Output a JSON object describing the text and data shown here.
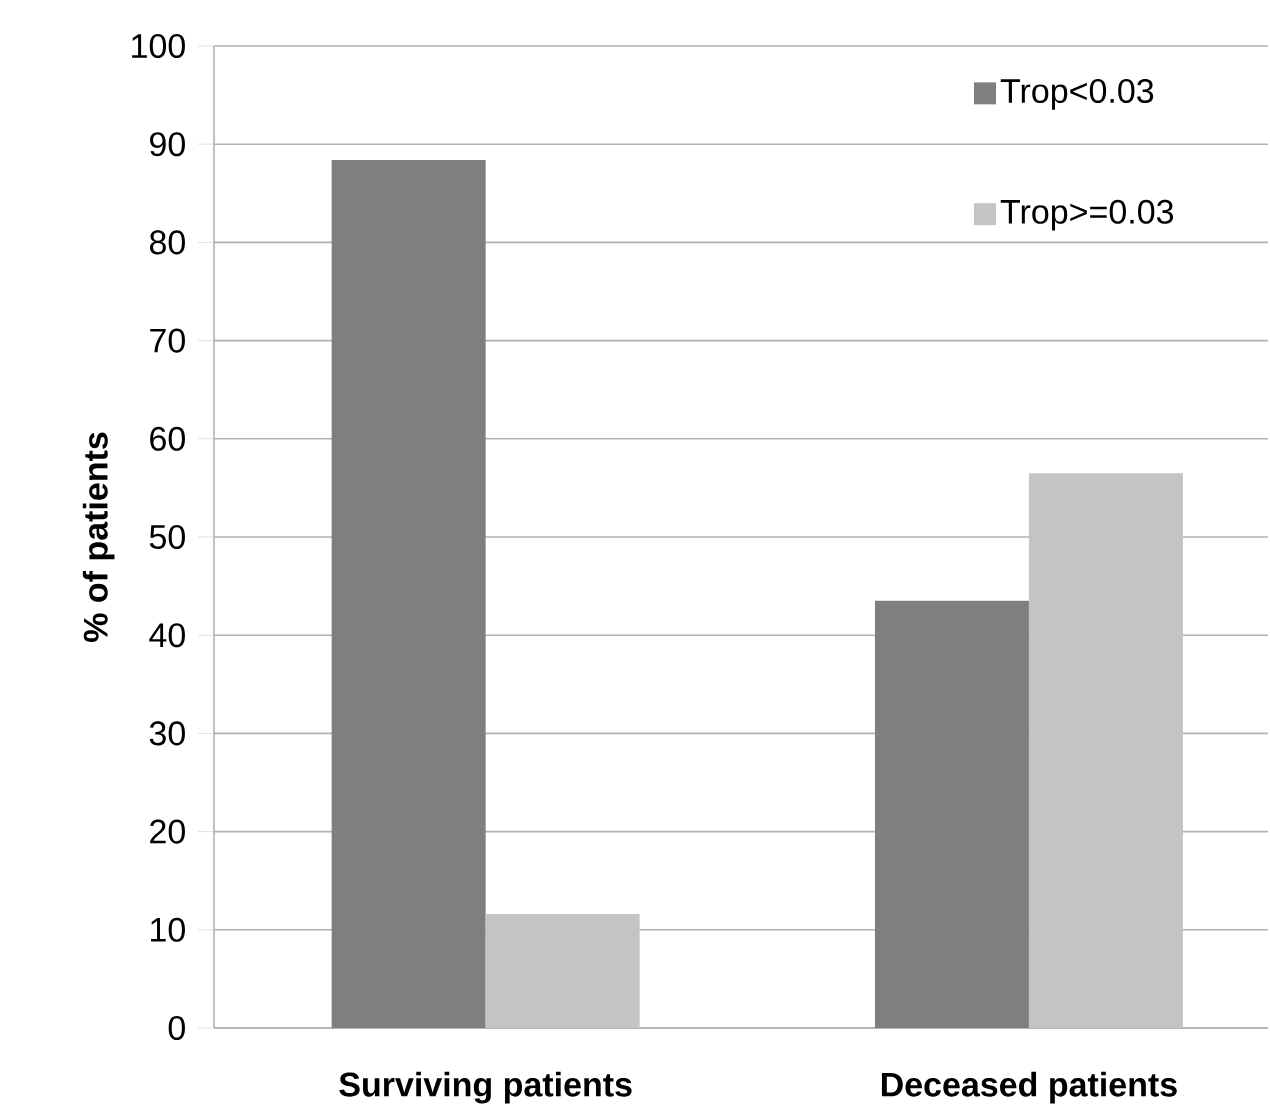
{
  "chart_data": {
    "type": "bar",
    "ylabel": "% of patients",
    "categories": [
      "Surviving patients",
      "Deceased patients"
    ],
    "series": [
      {
        "name": "Trop<0.03",
        "color": "#7f7f7f",
        "values": [
          88.4,
          43.5
        ]
      },
      {
        "name": "Trop>=0.03",
        "color": "#c4c4c4",
        "values": [
          11.6,
          56.5
        ]
      }
    ],
    "ylim": [
      0,
      100
    ],
    "yticks": [
      0,
      10,
      20,
      30,
      40,
      50,
      60,
      70,
      80,
      90,
      100
    ],
    "grid": "y",
    "legend": "top right"
  }
}
